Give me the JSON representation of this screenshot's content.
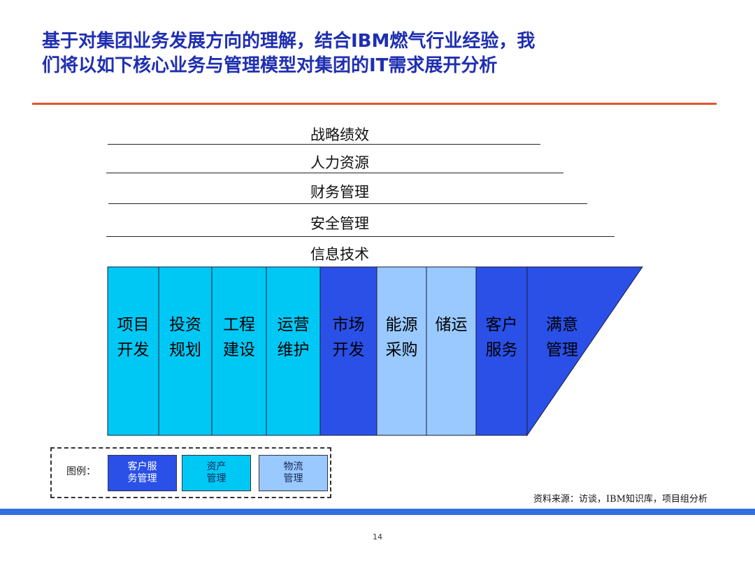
{
  "title": {
    "line1": "基于对集团业务发展方向的理解，结合IBM燃气行业经验，我",
    "line2": "们将以如下核心业务与管理模型对集团的IT需求展开分析"
  },
  "layers": [
    "战略绩效",
    "人力资源",
    "财务管理",
    "安全管理",
    "信息技术"
  ],
  "columns": [
    {
      "line1": "项目",
      "line2": "开发",
      "category": "资产管理"
    },
    {
      "line1": "投资",
      "line2": "规划",
      "category": "资产管理"
    },
    {
      "line1": "工程",
      "line2": "建设",
      "category": "资产管理"
    },
    {
      "line1": "运营",
      "line2": "维护",
      "category": "资产管理"
    },
    {
      "line1": "市场",
      "line2": "开发",
      "category": "客户服务管理"
    },
    {
      "line1": "能源",
      "line2": "采购",
      "category": "物流管理"
    },
    {
      "line1": "储运",
      "line2": "",
      "category": "物流管理"
    },
    {
      "line1": "客户",
      "line2": "服务",
      "category": "客户服务管理"
    },
    {
      "line1": "满意",
      "line2": "管理",
      "category": "客户服务管理"
    }
  ],
  "colors": {
    "客户服务管理": "#2a50e8",
    "资产管理": "#00c8f5",
    "物流管理": "#99c9ff",
    "title": "#1f2fb0",
    "title_rule": "#e0562a",
    "footer_bar": "#2f6fe0"
  },
  "legend": {
    "label": "图例：",
    "items": [
      {
        "line1": "客户服",
        "line2": "务管理",
        "color": "#2a50e8"
      },
      {
        "line1": "资产",
        "line2": "管理",
        "color": "#00c8f5"
      },
      {
        "line1": "物流",
        "line2": "管理",
        "color": "#99c9ff"
      }
    ]
  },
  "source": "资料来源：访谈，IBM知识库，项目组分析",
  "page_number": "14"
}
